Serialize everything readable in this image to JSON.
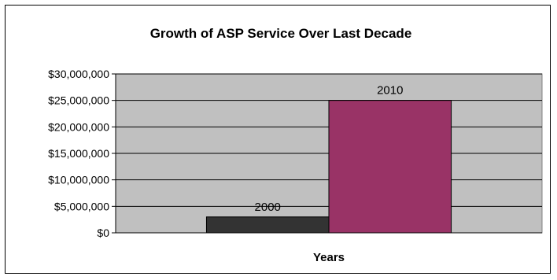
{
  "chart_data": {
    "type": "bar",
    "title": "Growth of ASP Service Over Last Decade",
    "xlabel": "Years",
    "ylabel": "",
    "ylim": [
      0,
      30000000
    ],
    "yticks": [
      0,
      5000000,
      10000000,
      15000000,
      20000000,
      25000000,
      30000000
    ],
    "ytick_labels": [
      "$0",
      "$5,000,000",
      "$10,000,000",
      "$15,000,000",
      "$20,000,000",
      "$25,000,000",
      "$30,000,000"
    ],
    "grid": true,
    "legend": "none",
    "plot_background": "#c0c0c0",
    "series": [
      {
        "label": "2000",
        "value": 3000000,
        "color": "#333333"
      },
      {
        "label": "2010",
        "value": 25000000,
        "color": "#993366"
      }
    ]
  }
}
